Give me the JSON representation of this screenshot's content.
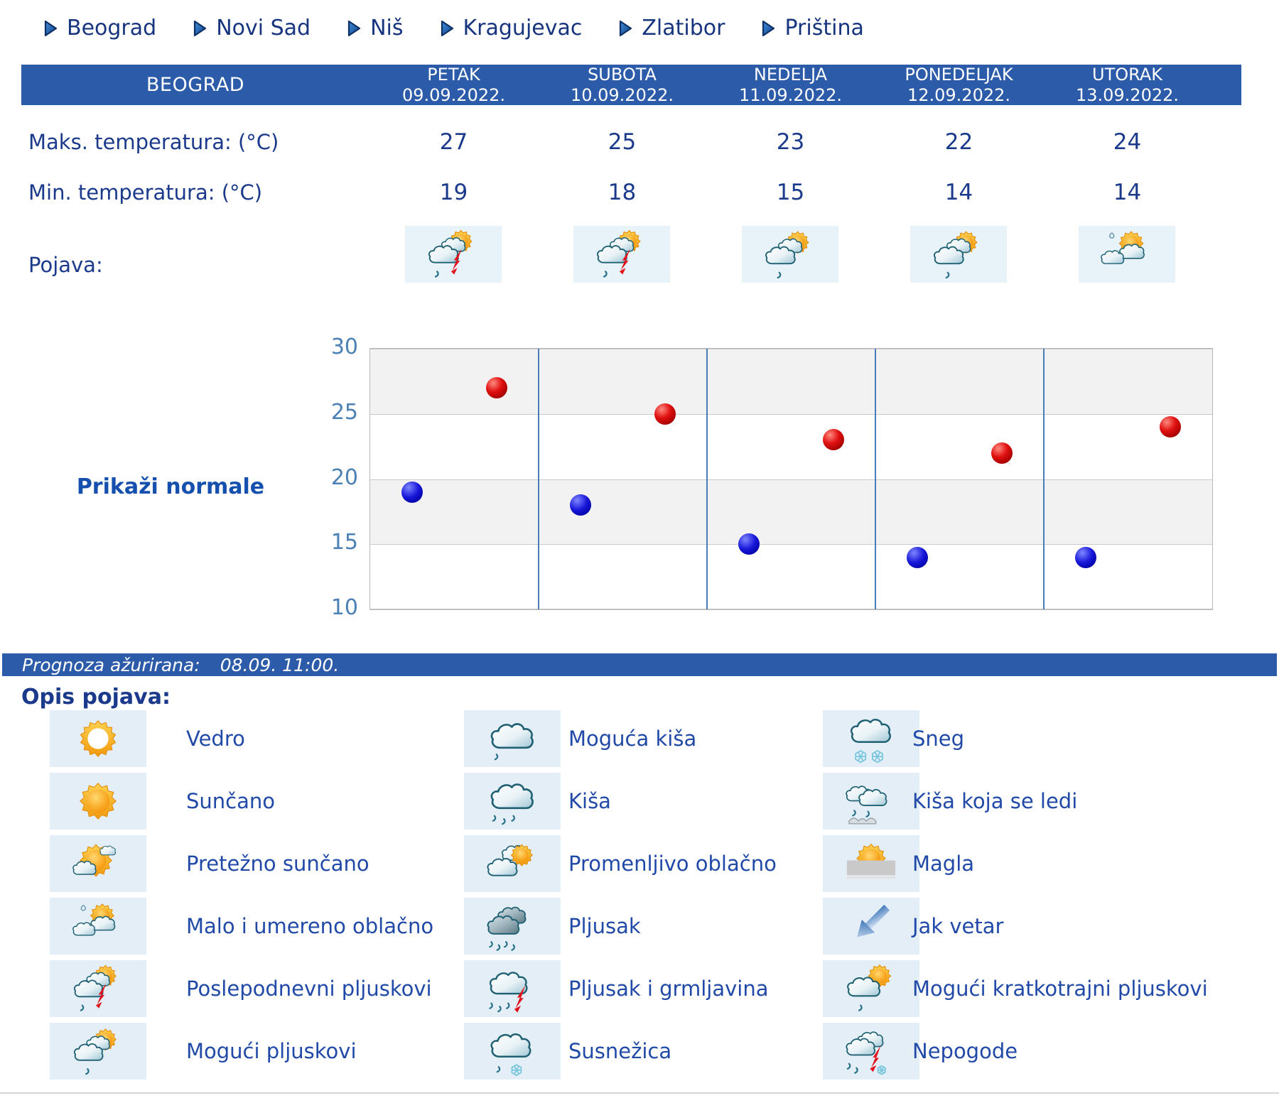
{
  "nav": {
    "items": [
      {
        "label": "Beograd"
      },
      {
        "label": "Novi Sad"
      },
      {
        "label": "Niš"
      },
      {
        "label": "Kragujevac"
      },
      {
        "label": "Zlatibor"
      },
      {
        "label": "Priština"
      }
    ]
  },
  "header": {
    "city": "BEOGRAD",
    "days": [
      {
        "name": "PETAK",
        "date": "09.09.2022."
      },
      {
        "name": "SUBOTA",
        "date": "10.09.2022."
      },
      {
        "name": "NEDELJA",
        "date": "11.09.2022."
      },
      {
        "name": "PONEDELJAK",
        "date": "12.09.2022."
      },
      {
        "name": "UTORAK",
        "date": "13.09.2022."
      }
    ]
  },
  "table": {
    "max_row": {
      "label": "Maks. temperatura: (°C)",
      "values": [
        "27",
        "25",
        "23",
        "22",
        "24"
      ]
    },
    "min_row": {
      "label": "Min. temperatura: (°C)",
      "values": [
        "19",
        "18",
        "15",
        "14",
        "14"
      ]
    },
    "pojava": {
      "label": "Pojava:",
      "icons": [
        "poslepodnevni-pljuskovi",
        "poslepodnevni-pljuskovi",
        "moguci-pljuskovi",
        "moguci-pljuskovi",
        "malo-umereno-oblacno"
      ]
    }
  },
  "chart": {
    "normale_button": "Prikaži normale"
  },
  "chart_data": {
    "type": "scatter",
    "categories": [
      "PETAK 09.09.2022.",
      "SUBOTA 10.09.2022.",
      "NEDELJA 11.09.2022.",
      "PONEDELJAK 12.09.2022.",
      "UTORAK 13.09.2022."
    ],
    "series": [
      {
        "name": "Maks. temperatura: (°C)",
        "color": "#cc0000",
        "values": [
          27,
          25,
          23,
          22,
          24
        ]
      },
      {
        "name": "Min. temperatura: (°C)",
        "color": "#0000cc",
        "values": [
          19,
          18,
          15,
          14,
          14
        ]
      }
    ],
    "ylim": [
      10,
      30
    ],
    "yticks": [
      30,
      25,
      20,
      15,
      10
    ],
    "grid": "horizontal",
    "band_colors": [
      "#f2f2f2",
      "#ffffff"
    ],
    "day_separator_color": "#4a7cb8",
    "legend_position": "none"
  },
  "status_bar": {
    "label": "Prognoza ažurirana:",
    "value": "08.09. 11:00."
  },
  "legend": {
    "title": "Opis pojava:",
    "columns": [
      {
        "items": [
          {
            "icon": "vedro",
            "label": "Vedro"
          },
          {
            "icon": "suncano",
            "label": "Sunčano"
          },
          {
            "icon": "pretezno-suncano",
            "label": "Pretežno sunčano"
          },
          {
            "icon": "malo-umereno-oblacno",
            "label": "Malo i umereno oblačno"
          },
          {
            "icon": "poslepodnevni-pljuskovi",
            "label": "Poslepodnevni pljuskovi"
          },
          {
            "icon": "moguci-pljuskovi",
            "label": "Mogući pljuskovi"
          }
        ]
      },
      {
        "items": [
          {
            "icon": "moguca-kisa",
            "label": "Moguća kiša"
          },
          {
            "icon": "kisa",
            "label": "Kiša"
          },
          {
            "icon": "promenljivo-oblacno",
            "label": "Promenljivo oblačno"
          },
          {
            "icon": "pljusak",
            "label": "Pljusak"
          },
          {
            "icon": "pljusak-grmljavina",
            "label": "Pljusak i grmljavina"
          },
          {
            "icon": "susnezica",
            "label": "Susnežica"
          }
        ]
      },
      {
        "items": [
          {
            "icon": "sneg",
            "label": "Sneg"
          },
          {
            "icon": "kisa-koja-se-ledi",
            "label": "Kiša koja se ledi"
          },
          {
            "icon": "magla",
            "label": "Magla"
          },
          {
            "icon": "jak-vetar",
            "label": "Jak vetar"
          },
          {
            "icon": "moguci-kratkotrajni-pljuskovi",
            "label": "Mogući kratkotrajni pljuskovi"
          },
          {
            "icon": "nepogode",
            "label": "Nepogode"
          }
        ]
      }
    ]
  },
  "colors": {
    "header_bg": "#2b5ba9",
    "navy_text": "#1b3a8c",
    "legend_text": "#2149a8",
    "axis_label": "#4b80b5",
    "max_dot": "#cc0000",
    "min_dot": "#0000cc",
    "icon_cell_bg": "#e4eef7"
  }
}
